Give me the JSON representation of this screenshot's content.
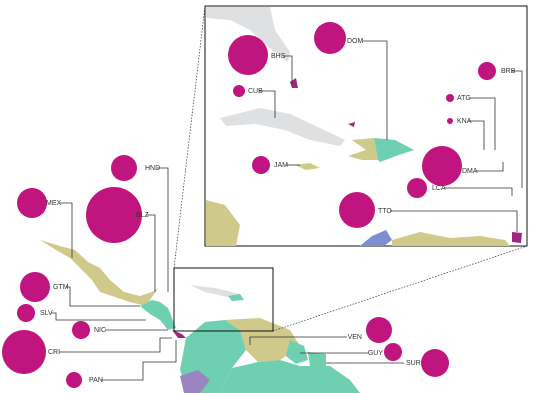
{
  "countries": [
    {
      "code": "HND",
      "size": 13
    },
    {
      "code": "MEX",
      "size": 15
    },
    {
      "code": "BLZ",
      "size": 28
    },
    {
      "code": "GTM",
      "size": 15
    },
    {
      "code": "SLV",
      "size": 9
    },
    {
      "code": "NIC",
      "size": 9
    },
    {
      "code": "CRI",
      "size": 22
    },
    {
      "code": "PAN",
      "size": 8
    },
    {
      "code": "VEN",
      "size": 13
    },
    {
      "code": "GUY",
      "size": 9
    },
    {
      "code": "SUR",
      "size": 14
    },
    {
      "code": "BHS",
      "size": 20
    },
    {
      "code": "DOM",
      "size": 16
    },
    {
      "code": "CUB",
      "size": 6
    },
    {
      "code": "BRB",
      "size": 9
    },
    {
      "code": "ATG",
      "size": 4
    },
    {
      "code": "KNA",
      "size": 3
    },
    {
      "code": "JAM",
      "size": 9
    },
    {
      "code": "DMA",
      "size": 20
    },
    {
      "code": "LCA",
      "size": 10
    },
    {
      "code": "TTO",
      "size": 18
    }
  ]
}
